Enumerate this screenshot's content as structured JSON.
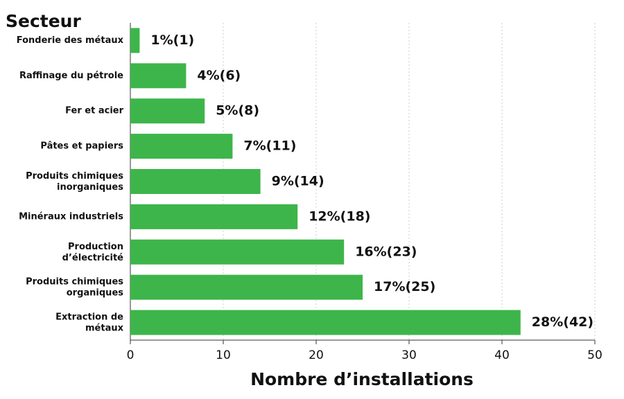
{
  "chart_data": {
    "type": "barh",
    "y_axis_label": "Secteur",
    "x_axis_label": "Nombre d’installations",
    "categories": [
      "Fonderie des métaux",
      "Raffinage du pétrole",
      "Fer et acier",
      "Pâtes et papiers",
      "Produits chimiques\ninorganiques",
      "Minéraux industriels",
      "Production\nd’électricité",
      "Produits chimiques\norganiques",
      "Extraction de\nmétaux"
    ],
    "values": [
      1,
      6,
      8,
      11,
      14,
      18,
      23,
      25,
      42
    ],
    "value_labels": [
      "1%(1)",
      "4%(6)",
      "5%(8)",
      "7%(11)",
      "9%(14)",
      "12%(18)",
      "16%(23)",
      "17%(25)",
      "28%(42)"
    ],
    "color": "#3db54a",
    "xlim": [
      0,
      50
    ],
    "xticks": [
      0,
      10,
      20,
      30,
      40,
      50
    ],
    "grid": true
  }
}
